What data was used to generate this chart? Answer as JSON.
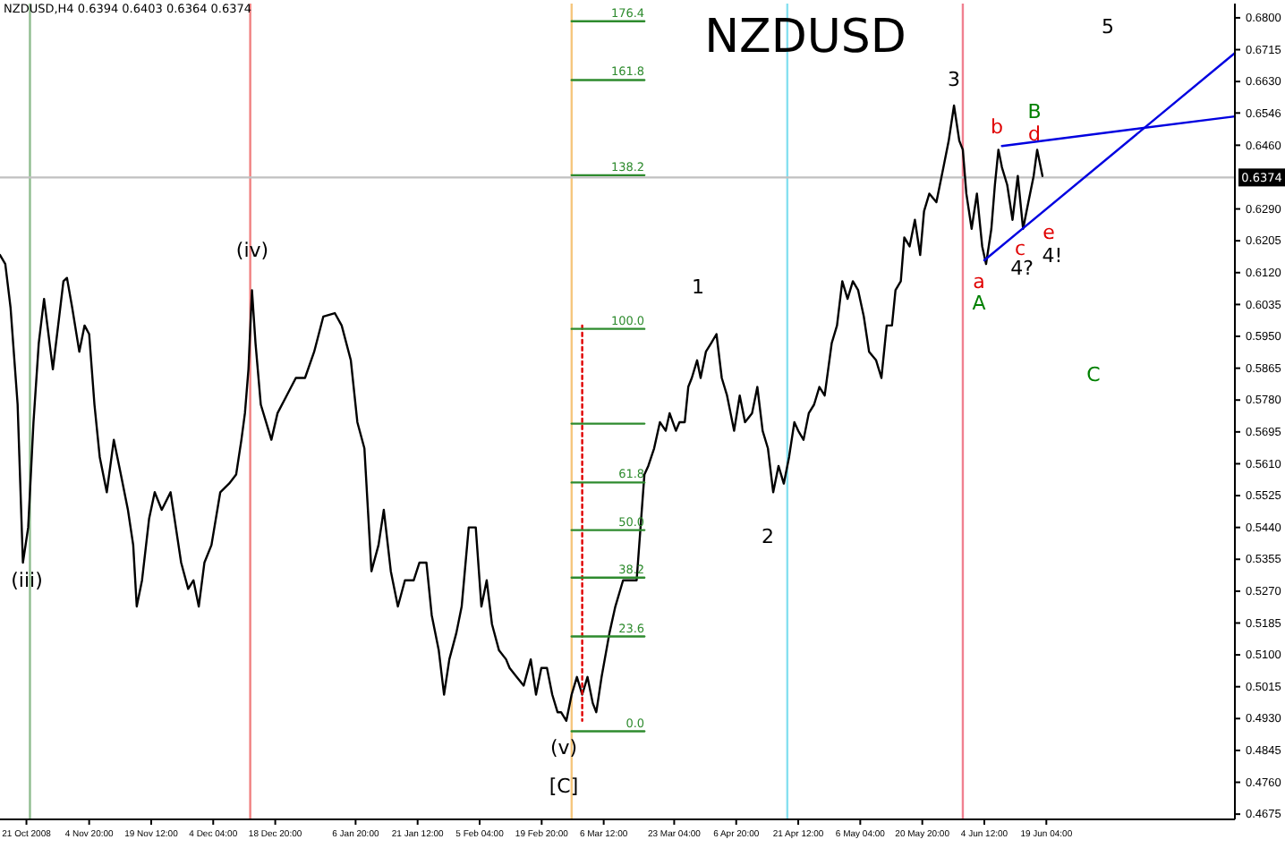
{
  "chart_data": {
    "type": "line",
    "title": "NZDUSD,H4  0.6394 0.6403 0.6364 0.6374",
    "subtitle": "NZDUSD",
    "xlim": [
      "2008-10-14T18:00",
      "2009-08-02T18:00"
    ],
    "ylim": [
      0.4661,
      0.6838
    ],
    "xticks": [
      {
        "value": "2008-10-21T00:00",
        "label": "21 Oct 2008"
      },
      {
        "value": "2008-11-04T20:00",
        "label": "4 Nov 20:00"
      },
      {
        "value": "2008-11-19T12:00",
        "label": "19 Nov 12:00"
      },
      {
        "value": "2008-12-04T04:00",
        "label": "4 Dec 04:00"
      },
      {
        "value": "2008-12-18T20:00",
        "label": "18 Dec 20:00"
      },
      {
        "value": "2009-01-06T20:00",
        "label": "6 Jan 20:00"
      },
      {
        "value": "2009-01-21T12:00",
        "label": "21 Jan 12:00"
      },
      {
        "value": "2009-02-05T04:00",
        "label": "5 Feb 04:00"
      },
      {
        "value": "2009-02-19T20:00",
        "label": "19 Feb 20:00"
      },
      {
        "value": "2009-03-06T12:00",
        "label": "6 Mar 12:00"
      },
      {
        "value": "2009-03-23T04:00",
        "label": "23 Mar 04:00"
      },
      {
        "value": "2009-04-06T20:00",
        "label": "6 Apr 20:00"
      },
      {
        "value": "2009-04-21T12:00",
        "label": "21 Apr 12:00"
      },
      {
        "value": "2009-05-06T04:00",
        "label": "6 May 04:00"
      },
      {
        "value": "2009-05-20T20:00",
        "label": "20 May 20:00"
      },
      {
        "value": "2009-06-04T12:00",
        "label": "4 Jun 12:00"
      },
      {
        "value": "2009-06-19T04:00",
        "label": "19 Jun 04:00"
      }
    ],
    "yticks": [
      {
        "value": 0.68,
        "label": "0.6800"
      },
      {
        "value": 0.6715,
        "label": "0.6715"
      },
      {
        "value": 0.663,
        "label": "0.6630"
      },
      {
        "value": 0.6546,
        "label": "0.6546"
      },
      {
        "value": 0.646,
        "label": "0.6460"
      },
      {
        "value": 0.629,
        "label": "0.6290"
      },
      {
        "value": 0.6205,
        "label": "0.6205"
      },
      {
        "value": 0.612,
        "label": "0.6120"
      },
      {
        "value": 0.6035,
        "label": "0.6035"
      },
      {
        "value": 0.595,
        "label": "0.5950"
      },
      {
        "value": 0.5865,
        "label": "0.5865"
      },
      {
        "value": 0.578,
        "label": "0.5780"
      },
      {
        "value": 0.5695,
        "label": "0.5695"
      },
      {
        "value": 0.561,
        "label": "0.5610"
      },
      {
        "value": 0.5525,
        "label": "0.5525"
      },
      {
        "value": 0.544,
        "label": "0.5440"
      },
      {
        "value": 0.5355,
        "label": "0.5355"
      },
      {
        "value": 0.527,
        "label": "0.5270"
      },
      {
        "value": 0.5185,
        "label": "0.5185"
      },
      {
        "value": 0.51,
        "label": "0.5100"
      },
      {
        "value": 0.5015,
        "label": "0.5015"
      },
      {
        "value": 0.493,
        "label": "0.4930"
      },
      {
        "value": 0.4845,
        "label": "0.4845"
      },
      {
        "value": 0.476,
        "label": "0.4760"
      },
      {
        "value": 0.4675,
        "label": "0.4675"
      }
    ],
    "grid": false,
    "marker": "none",
    "series": [
      {
        "color": "#000000",
        "x": [
          "2008-10-14T18:00",
          "2008-10-16T00:00",
          "2008-10-17T06:00",
          "2008-10-18T22:00",
          "2008-10-20T04:00",
          "2008-10-21T10:00",
          "2008-10-22T16:00",
          "2008-10-23T22:00",
          "2008-10-25T04:00",
          "2008-10-27T06:00",
          "2008-10-28T12:00",
          "2008-10-29T18:00",
          "2008-10-30T14:00",
          "2008-10-31T20:00",
          "2008-11-02T12:00",
          "2008-11-03T18:00",
          "2008-11-04T20:00",
          "2008-11-06T02:00",
          "2008-11-07T08:00",
          "2008-11-09T00:00",
          "2008-11-10T16:00",
          "2008-11-12T08:00",
          "2008-11-14T00:00",
          "2008-11-15T06:00",
          "2008-11-16T02:00",
          "2008-11-17T08:00",
          "2008-11-19T00:00",
          "2008-11-20T08:00",
          "2008-11-22T00:00",
          "2008-11-24T02:00",
          "2008-11-25T08:00",
          "2008-11-26T14:00",
          "2008-11-28T06:00",
          "2008-11-29T12:00",
          "2008-11-30T18:00",
          "2008-12-02T02:00",
          "2008-12-03T18:00",
          "2008-12-05T20:00",
          "2008-12-07T22:00",
          "2008-12-09T14:00",
          "2008-12-10T20:00",
          "2008-12-11T16:00",
          "2008-12-12T12:00",
          "2008-12-13T08:00",
          "2008-12-14T04:00",
          "2008-12-15T10:00",
          "2008-12-16T16:00",
          "2008-12-17T22:00",
          "2008-12-19T09:00",
          "2008-12-21T13:00",
          "2008-12-23T17:00",
          "2008-12-25T21:00",
          "2008-12-28T01:00",
          "2008-12-30T05:00",
          "2009-01-01T22:00",
          "2009-01-03T13:00",
          "2009-01-05T17:00",
          "2009-01-07T06:00",
          "2009-01-08T22:00",
          "2009-01-10T14:00",
          "2009-01-12T06:00",
          "2009-01-13T12:00",
          "2009-01-15T04:00",
          "2009-01-16T20:00",
          "2009-01-18T12:00",
          "2009-01-20T14:00",
          "2009-01-21T22:00",
          "2009-01-23T14:00",
          "2009-01-24T20:00",
          "2009-01-26T12:00",
          "2009-01-27T18:00",
          "2009-01-29T00:00",
          "2009-01-30T16:00",
          "2009-01-31T22:00",
          "2009-02-02T14:00",
          "2009-02-04T06:00",
          "2009-02-05T14:00",
          "2009-02-06T20:00",
          "2009-02-08T02:00",
          "2009-02-09T18:00",
          "2009-02-11T10:00",
          "2009-02-12T06:00",
          "2009-02-13T22:00",
          "2009-02-15T14:00",
          "2009-02-17T06:00",
          "2009-02-18T12:00",
          "2009-02-19T18:00",
          "2009-02-21T02:00",
          "2009-02-22T08:00",
          "2009-02-23T14:00",
          "2009-02-24T10:00",
          "2009-02-25T16:00",
          "2009-02-26T22:00",
          "2009-02-28T04:00",
          "2009-03-01T10:00",
          "2009-03-02T16:00",
          "2009-03-03T22:00",
          "2009-03-04T18:00",
          "2009-03-06T00:00",
          "2009-03-07T21:00",
          "2009-03-09T06:00",
          "2009-03-11T02:00",
          "2009-03-12T22:00",
          "2009-03-14T07:00",
          "2009-03-15T05:00",
          "2009-03-16T03:00",
          "2009-03-17T01:00",
          "2009-03-18T10:00",
          "2009-03-19T19:00",
          "2009-03-21T04:00",
          "2009-03-22T02:00",
          "2009-03-23T14:00",
          "2009-03-24T10:00",
          "2009-03-25T16:00",
          "2009-03-26T12:00",
          "2009-03-27T08:00",
          "2009-03-28T14:00",
          "2009-03-29T10:00",
          "2009-03-30T16:00",
          "2009-03-31T22:00",
          "2009-04-02T04:00",
          "2009-04-03T10:00",
          "2009-04-04T16:00",
          "2009-04-05T12:00",
          "2009-04-06T08:00",
          "2009-04-07T16:00",
          "2009-04-08T22:00",
          "2009-04-10T14:00",
          "2009-04-11T20:00",
          "2009-04-13T02:00",
          "2009-04-14T08:00",
          "2009-04-15T14:00",
          "2009-04-16T20:00",
          "2009-04-18T02:00",
          "2009-04-19T08:00",
          "2009-04-20T14:00",
          "2009-04-21T12:00",
          "2009-04-22T18:00",
          "2009-04-24T00:00",
          "2009-04-25T06:00",
          "2009-04-26T12:00",
          "2009-04-27T18:00",
          "2009-04-29T10:00",
          "2009-04-30T16:00",
          "2009-05-01T22:00",
          "2009-05-03T04:00",
          "2009-05-04T10:00",
          "2009-05-05T16:00",
          "2009-05-07T00:00",
          "2009-05-08T06:00",
          "2009-05-09T22:00",
          "2009-05-11T04:00",
          "2009-05-12T10:00",
          "2009-05-13T16:00",
          "2009-05-14T12:00",
          "2009-05-15T18:00",
          "2009-05-16T14:00",
          "2009-05-17T20:00",
          "2009-05-19T02:00",
          "2009-05-20T08:00",
          "2009-05-21T06:00",
          "2009-05-22T12:00",
          "2009-05-24T04:00",
          "2009-05-25T20:00",
          "2009-05-27T02:00",
          "2009-05-28T08:00",
          "2009-05-29T14:00",
          "2009-05-30T10:00",
          "2009-05-31T06:00",
          "2009-06-01T12:00",
          "2009-06-02T18:00",
          "2009-06-04T00:00",
          "2009-06-04T22:00",
          "2009-06-06T04:00",
          "2009-06-07T00:00",
          "2009-06-07T20:00",
          "2009-06-08T16:00",
          "2009-06-09T22:00",
          "2009-06-11T04:00",
          "2009-06-12T10:00",
          "2009-06-13T16:00",
          "2009-06-14T22:00",
          "2009-06-16T04:00",
          "2009-06-17T00:00",
          "2009-06-18T06:00"
        ],
        "values": [
          0.6167,
          0.6143,
          0.6026,
          0.5768,
          0.5346,
          0.544,
          0.5721,
          0.5932,
          0.605,
          0.5862,
          0.5979,
          0.6097,
          0.6106,
          0.6026,
          0.5909,
          0.5979,
          0.5956,
          0.5768,
          0.5628,
          0.5534,
          0.5674,
          0.5581,
          0.5487,
          0.5393,
          0.5229,
          0.5299,
          0.5463,
          0.5534,
          0.5487,
          0.5534,
          0.544,
          0.5346,
          0.5276,
          0.5299,
          0.5229,
          0.5346,
          0.5393,
          0.5534,
          0.5557,
          0.5581,
          0.5674,
          0.5745,
          0.5862,
          0.6073,
          0.5932,
          0.5768,
          0.5721,
          0.5674,
          0.5745,
          0.5792,
          0.5839,
          0.5839,
          0.5909,
          0.6003,
          0.6012,
          0.5979,
          0.5886,
          0.5721,
          0.5651,
          0.5323,
          0.5393,
          0.5487,
          0.5323,
          0.5229,
          0.5299,
          0.5299,
          0.5346,
          0.5346,
          0.5206,
          0.5112,
          0.4994,
          0.5088,
          0.5159,
          0.5229,
          0.544,
          0.544,
          0.5229,
          0.5299,
          0.5182,
          0.5112,
          0.5088,
          0.5065,
          0.5041,
          0.5018,
          0.5088,
          0.4994,
          0.5065,
          0.5065,
          0.4994,
          0.4947,
          0.4947,
          0.4924,
          0.4994,
          0.5041,
          0.4994,
          0.5041,
          0.4971,
          0.4947,
          0.5041,
          0.5159,
          0.5229,
          0.5299,
          0.5299,
          0.5299,
          0.544,
          0.5581,
          0.5604,
          0.5651,
          0.5721,
          0.5698,
          0.5745,
          0.5698,
          0.5721,
          0.5721,
          0.5815,
          0.5839,
          0.5886,
          0.5839,
          0.5909,
          0.5932,
          0.5956,
          0.5839,
          0.5792,
          0.5745,
          0.5698,
          0.5792,
          0.5721,
          0.5745,
          0.5815,
          0.5698,
          0.5651,
          0.5534,
          0.5604,
          0.5557,
          0.5628,
          0.5721,
          0.5698,
          0.5674,
          0.5745,
          0.5768,
          0.5815,
          0.5792,
          0.5932,
          0.5979,
          0.6097,
          0.605,
          0.6097,
          0.6073,
          0.6003,
          0.5909,
          0.5886,
          0.5839,
          0.5979,
          0.5979,
          0.6073,
          0.6097,
          0.6214,
          0.619,
          0.6261,
          0.6167,
          0.6284,
          0.6331,
          0.6308,
          0.6401,
          0.6472,
          0.6566,
          0.6472,
          0.6448,
          0.6331,
          0.6237,
          0.6331,
          0.619,
          0.6143,
          0.6237,
          0.6354,
          0.6448,
          0.6401,
          0.6354,
          0.6261,
          0.6378,
          0.6237,
          0.6308,
          0.6378,
          0.6448,
          0.6378
        ]
      },
      {
        "color": "#0000e0",
        "x": [
          "2009-06-04T12:00",
          "2009-08-02T18:00"
        ],
        "values": [
          0.6153,
          0.6706
        ]
      },
      {
        "color": "#0000e0",
        "x": [
          "2009-06-08T16:00",
          "2009-08-02T18:00"
        ],
        "values": [
          0.6458,
          0.6537
        ]
      },
      {
        "color": "#e00000",
        "line_style": "dotted",
        "x": [
          "2009-03-01T10:00",
          "2009-03-01T10:00"
        ],
        "values": [
          0.5979,
          0.4924
        ]
      },
      {
        "color": "#2e8b2e",
        "x": [
          "2009-02-26T22:00",
          "2009-03-16T03:00"
        ],
        "values": [
          0.6791,
          0.6791
        ]
      },
      {
        "color": "#2e8b2e",
        "x": [
          "2009-02-26T22:00",
          "2009-03-16T03:00"
        ],
        "values": [
          0.6634,
          0.6634
        ]
      },
      {
        "color": "#2e8b2e",
        "x": [
          "2009-02-26T22:00",
          "2009-03-16T03:00"
        ],
        "values": [
          0.638,
          0.638
        ]
      },
      {
        "color": "#2e8b2e",
        "x": [
          "2009-02-26T22:00",
          "2009-03-16T03:00"
        ],
        "values": [
          0.597,
          0.597
        ]
      },
      {
        "color": "#2e8b2e",
        "x": [
          "2009-02-26T22:00",
          "2009-03-16T03:00"
        ],
        "values": [
          0.5717,
          0.5717
        ]
      },
      {
        "color": "#2e8b2e",
        "x": [
          "2009-02-26T22:00",
          "2009-03-16T03:00"
        ],
        "values": [
          0.556,
          0.556
        ]
      },
      {
        "color": "#2e8b2e",
        "x": [
          "2009-02-26T22:00",
          "2009-03-16T03:00"
        ],
        "values": [
          0.5433,
          0.5433
        ]
      },
      {
        "color": "#2e8b2e",
        "x": [
          "2009-02-26T22:00",
          "2009-03-16T03:00"
        ],
        "values": [
          0.5306,
          0.5306
        ]
      },
      {
        "color": "#2e8b2e",
        "x": [
          "2009-02-26T22:00",
          "2009-03-16T03:00"
        ],
        "values": [
          0.5149,
          0.5149
        ]
      },
      {
        "color": "#2e8b2e",
        "x": [
          "2009-02-26T22:00",
          "2009-03-16T03:00"
        ],
        "values": [
          0.4896,
          0.4896
        ]
      }
    ],
    "ref_lines": [
      {
        "axis": "x",
        "value": "2008-10-21T20:00",
        "color": "#8fbc8f"
      },
      {
        "axis": "x",
        "value": "2008-12-12T22:00",
        "color": "#f08080"
      },
      {
        "axis": "x",
        "value": "2009-02-26T22:00",
        "color": "#f5c77e"
      },
      {
        "axis": "x",
        "value": "2009-04-18T22:00",
        "color": "#87e0f0"
      },
      {
        "axis": "x",
        "value": "2009-05-30T10:00",
        "color": "#f08090"
      },
      {
        "axis": "y",
        "value": 0.6374,
        "label": "0.6374",
        "color": "#c0c0c0"
      }
    ],
    "annotations": [
      {
        "text": "176.4",
        "x": "2009-03-16T03:00",
        "y": 0.6791
      },
      {
        "text": "161.8",
        "x": "2009-03-16T03:00",
        "y": 0.6634
      },
      {
        "text": "138.2",
        "x": "2009-03-16T03:00",
        "y": 0.638
      },
      {
        "text": "100.0",
        "x": "2009-03-16T03:00",
        "y": 0.597
      },
      {
        "text": "61.8",
        "x": "2009-03-16T03:00",
        "y": 0.556
      },
      {
        "text": "50.0",
        "x": "2009-03-16T03:00",
        "y": 0.5433
      },
      {
        "text": "38.2",
        "x": "2009-03-16T03:00",
        "y": 0.5306
      },
      {
        "text": "23.6",
        "x": "2009-03-16T03:00",
        "y": 0.5149
      },
      {
        "text": "0.0",
        "x": "2009-03-16T03:00",
        "y": 0.4896
      },
      "(iii)",
      "(iv)",
      "(v)",
      "[C]",
      "1",
      "2",
      "3",
      "4?",
      "4!",
      "5",
      "a",
      "A",
      "b",
      "B",
      "c",
      "d",
      "e",
      "C"
    ]
  }
}
